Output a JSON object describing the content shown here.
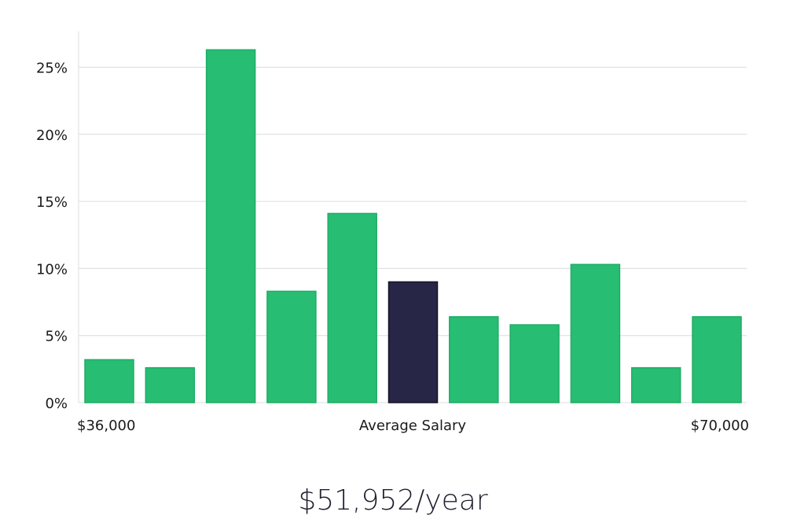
{
  "chart_data": {
    "type": "bar",
    "title": "",
    "xlabel": "",
    "ylabel": "",
    "ylim": [
      0,
      27.5
    ],
    "yticks": [
      0,
      5,
      10,
      15,
      20,
      25
    ],
    "ytick_labels": [
      "0%",
      "5%",
      "10%",
      "15%",
      "20%",
      "25%"
    ],
    "grid": true,
    "categories": [
      "1",
      "2",
      "3",
      "4",
      "5",
      "6",
      "7",
      "8",
      "9",
      "10",
      "11"
    ],
    "values": [
      3.2,
      2.6,
      26.3,
      8.3,
      14.1,
      9.0,
      6.4,
      5.8,
      10.3,
      2.6,
      6.4
    ],
    "highlight_index": 5,
    "colors": {
      "bar": "#27bd73",
      "bar_stroke": "#20ad67",
      "highlight": "#282646",
      "highlight_stroke": "#14132b",
      "grid": "#dcdcdc",
      "axis": "#dcdcdc"
    },
    "x_axis_labels": {
      "left": "$36,000",
      "center": "Average Salary",
      "right": "$70,000"
    }
  },
  "headline": {
    "value": "$51,952/year"
  }
}
